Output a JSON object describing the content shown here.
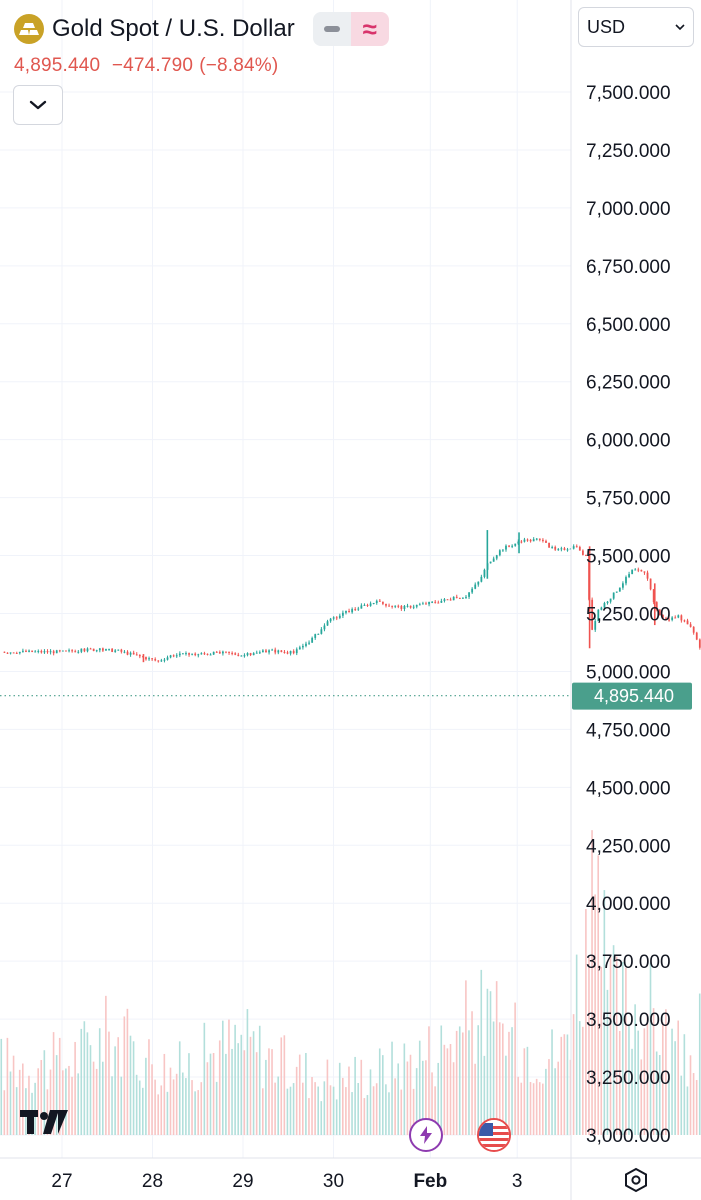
{
  "header": {
    "title": "Gold Spot / U.S. Dollar",
    "last_price": "4,895.440",
    "change": "−474.790",
    "change_pct": "(−8.84%)",
    "logo_icon": "gold-bars-icon",
    "chart_style_wave": "≈"
  },
  "currency": {
    "value": "USD"
  },
  "colors": {
    "up": "#26a69a",
    "down": "#ef5350",
    "vol_up": "#b2dfdb",
    "vol_down": "#f8c5c4",
    "grid": "#f0f3fa",
    "price_label_bg": "#4a9f8c",
    "change_text": "#e0574f"
  },
  "chart_data": {
    "type": "candlestick",
    "symbol": "Gold Spot / U.S. Dollar",
    "currency": "USD",
    "x_ticks": [
      "27",
      "28",
      "29",
      "30",
      "Feb",
      "3"
    ],
    "y_ticks": [
      "7,500.000",
      "7,250.000",
      "7,000.000",
      "6,750.000",
      "6,500.000",
      "6,250.000",
      "6,000.000",
      "5,750.000",
      "5,500.000",
      "5,250.000",
      "5,000.000",
      "4,750.000",
      "4,500.000",
      "4,250.000",
      "4,000.000",
      "3,750.000",
      "3,500.000",
      "3,250.000",
      "3,000.000"
    ],
    "ylim": [
      2970,
      7570
    ],
    "last_price": 4895.44,
    "last_price_label": "4,895.440",
    "grid": true,
    "path": [
      [
        0,
        5085
      ],
      [
        0.15,
        5090
      ],
      [
        0.3,
        5095
      ],
      [
        0.6,
        5090
      ],
      [
        0.9,
        5060
      ],
      [
        1.05,
        5045
      ],
      [
        1.2,
        5070
      ],
      [
        1.5,
        5075
      ],
      [
        1.8,
        5080
      ],
      [
        2.0,
        5070
      ],
      [
        2.3,
        5090
      ],
      [
        2.55,
        5080
      ],
      [
        2.75,
        5140
      ],
      [
        2.95,
        5220
      ],
      [
        3.15,
        5260
      ],
      [
        3.45,
        5300
      ],
      [
        3.75,
        5275
      ],
      [
        4.05,
        5295
      ],
      [
        4.45,
        5325
      ],
      [
        4.6,
        5390
      ],
      [
        4.7,
        5470
      ],
      [
        4.85,
        5530
      ],
      [
        5.05,
        5560
      ],
      [
        5.25,
        5570
      ],
      [
        5.45,
        5520
      ],
      [
        5.65,
        5540
      ],
      [
        5.78,
        5495
      ],
      [
        5.83,
        5230
      ],
      [
        5.86,
        5150
      ],
      [
        5.9,
        5260
      ],
      [
        6.1,
        5340
      ],
      [
        6.3,
        5440
      ],
      [
        6.45,
        5420
      ],
      [
        6.55,
        5270
      ],
      [
        6.65,
        5220
      ],
      [
        6.8,
        5240
      ],
      [
        6.95,
        5180
      ],
      [
        7.05,
        5090
      ],
      [
        7.15,
        5150
      ],
      [
        7.3,
        5110
      ],
      [
        7.45,
        5080
      ],
      [
        7.55,
        4970
      ],
      [
        7.62,
        4820
      ],
      [
        7.68,
        4760
      ],
      [
        7.75,
        4870
      ],
      [
        7.82,
        4920
      ],
      [
        7.9,
        4880
      ],
      [
        8.0,
        4895.44
      ]
    ],
    "wicks": [
      [
        0.9,
        5060,
        5040,
        5075
      ],
      [
        4.7,
        5470,
        5400,
        5610
      ],
      [
        5.05,
        5560,
        5510,
        5600
      ],
      [
        5.83,
        5230,
        5100,
        5540
      ],
      [
        6.55,
        5270,
        5200,
        5380
      ],
      [
        7.35,
        5100,
        4960,
        5130
      ],
      [
        7.62,
        4820,
        4660,
        4870
      ],
      [
        7.82,
        4920,
        4830,
        4955
      ]
    ],
    "volume_profile": [
      [
        0,
        0.32
      ],
      [
        0.5,
        0.45
      ],
      [
        1.2,
        0.28
      ],
      [
        1.7,
        0.38
      ],
      [
        2.0,
        0.42
      ],
      [
        2.5,
        0.3
      ],
      [
        3.0,
        0.25
      ],
      [
        3.6,
        0.3
      ],
      [
        4.2,
        0.4
      ],
      [
        4.6,
        0.55
      ],
      [
        5.0,
        0.42
      ],
      [
        5.5,
        0.35
      ],
      [
        5.85,
        0.98
      ],
      [
        6.1,
        0.6
      ],
      [
        6.5,
        0.55
      ],
      [
        6.9,
        0.3
      ],
      [
        7.3,
        0.72
      ],
      [
        7.65,
        0.98
      ],
      [
        8.0,
        0.2
      ]
    ]
  }
}
